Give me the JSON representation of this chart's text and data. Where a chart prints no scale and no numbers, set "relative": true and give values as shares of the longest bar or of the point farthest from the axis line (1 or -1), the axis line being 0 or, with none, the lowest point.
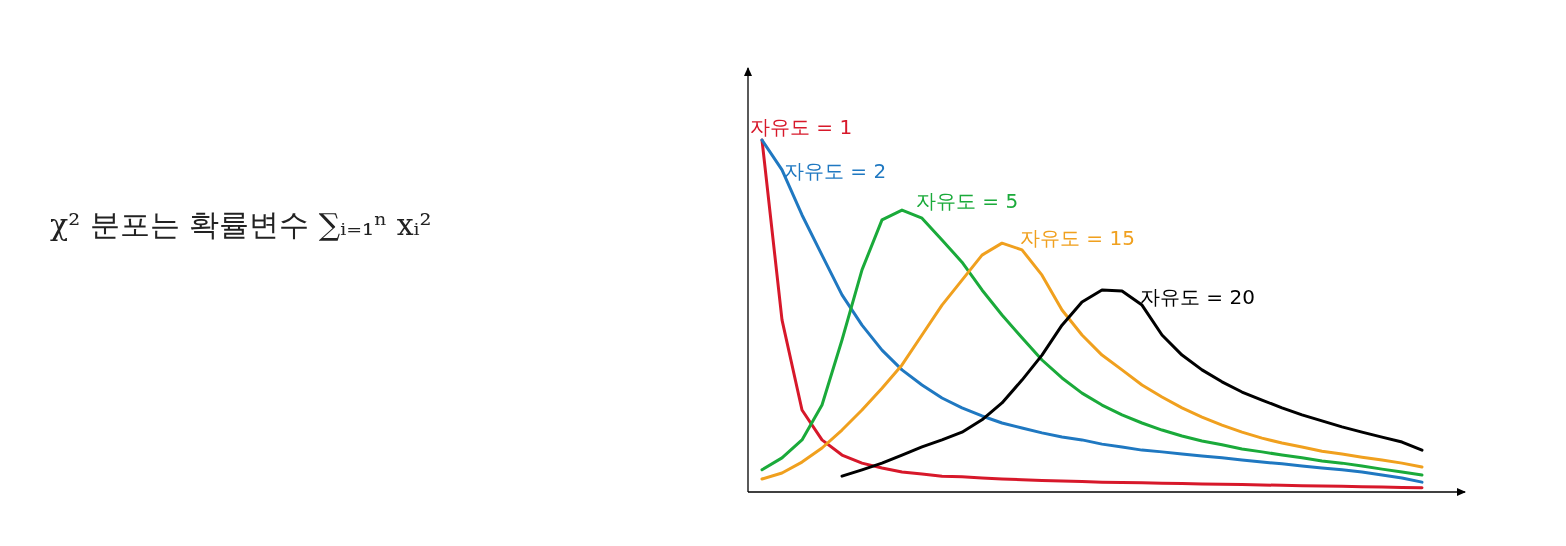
{
  "chart_data": {
    "type": "line",
    "title": "χ² 분포는 확률변수 ∑ᵢ₌₁ⁿ xᵢ²",
    "relative": true,
    "categories": [
      null,
      null,
      null,
      null,
      null,
      null,
      null,
      null,
      null,
      null,
      null,
      null,
      null,
      null,
      null,
      null,
      null,
      null,
      null,
      null,
      null,
      null,
      null,
      null,
      null,
      null,
      null,
      null,
      null,
      null,
      null,
      null,
      null,
      null
    ],
    "series": [
      {
        "name": "자유도 = 1",
        "color": "#d7182a",
        "values": [
          1.0,
          0.489,
          0.233,
          0.148,
          0.105,
          0.082,
          0.068,
          0.057,
          0.051,
          0.045,
          0.043,
          0.04,
          0.037,
          0.035,
          0.033,
          0.031,
          0.03,
          0.028,
          0.027,
          0.026,
          0.025,
          0.024,
          0.023,
          0.022,
          0.021,
          0.02,
          0.019,
          0.018,
          0.017,
          0.016,
          0.015,
          0.014,
          0.013,
          0.012
        ]
      },
      {
        "name": "자유도 = 2",
        "color": "#1f78c1",
        "values": [
          1.0,
          0.915,
          0.787,
          0.673,
          0.56,
          0.474,
          0.403,
          0.347,
          0.304,
          0.267,
          0.239,
          0.216,
          0.196,
          0.182,
          0.168,
          0.156,
          0.148,
          0.136,
          0.128,
          0.119,
          0.114,
          0.108,
          0.102,
          0.097,
          0.091,
          0.085,
          0.08,
          0.074,
          0.068,
          0.063,
          0.057,
          0.048,
          0.04,
          0.028
        ]
      },
      {
        "name": "자유도 = 5",
        "color": "#1aaa3a",
        "values": [
          0.063,
          0.097,
          0.148,
          0.247,
          0.432,
          0.631,
          0.773,
          0.801,
          0.778,
          0.716,
          0.653,
          0.574,
          0.503,
          0.438,
          0.375,
          0.324,
          0.281,
          0.247,
          0.219,
          0.196,
          0.176,
          0.159,
          0.145,
          0.134,
          0.122,
          0.114,
          0.105,
          0.097,
          0.088,
          0.082,
          0.074,
          0.065,
          0.057,
          0.048
        ]
      },
      {
        "name": "자유도 = 15",
        "color": "#f0a01e",
        "values": [
          0.037,
          0.054,
          0.085,
          0.125,
          0.176,
          0.233,
          0.295,
          0.361,
          0.446,
          0.531,
          0.602,
          0.673,
          0.707,
          0.688,
          0.616,
          0.517,
          0.446,
          0.389,
          0.347,
          0.304,
          0.27,
          0.239,
          0.213,
          0.19,
          0.17,
          0.153,
          0.139,
          0.128,
          0.116,
          0.108,
          0.099,
          0.091,
          0.082,
          0.071
        ]
      },
      {
        "name": "자유도 = 20",
        "color": "#000000",
        "values": [
          null,
          null,
          null,
          null,
          0.045,
          0.063,
          0.082,
          0.105,
          0.128,
          0.148,
          0.17,
          0.205,
          0.253,
          0.318,
          0.389,
          0.474,
          0.54,
          0.574,
          0.571,
          0.531,
          0.446,
          0.389,
          0.347,
          0.313,
          0.284,
          0.261,
          0.239,
          0.219,
          0.202,
          0.185,
          0.17,
          0.156,
          0.142,
          0.119
        ]
      }
    ]
  }
}
